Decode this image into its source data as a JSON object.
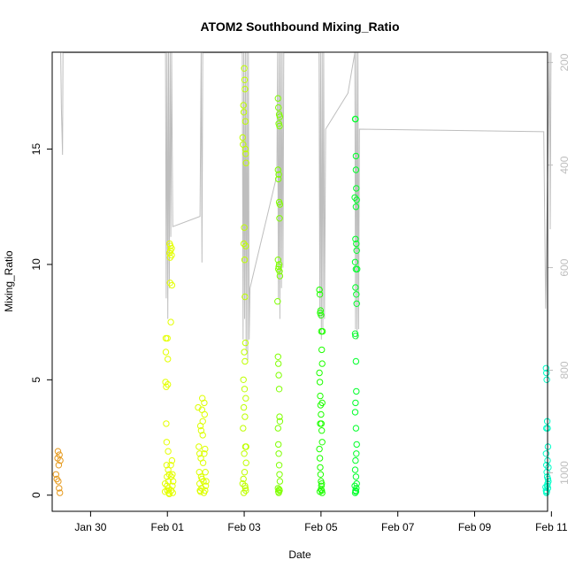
{
  "chart_data": {
    "type": "scatter",
    "title": "ATOM2 Southbound Mixing_Ratio",
    "xlabel": "Date",
    "ylabel": "Mixing_Ratio",
    "y2label": "",
    "xlim": [
      0,
      12.9
    ],
    "ylim": [
      -0.7,
      19.2
    ],
    "y2lim": [
      1075,
      180
    ],
    "y2_reversed": true,
    "grid": false,
    "legend": "none",
    "x_ticks": [
      {
        "x": 1.0,
        "label": "Jan 30"
      },
      {
        "x": 3.0,
        "label": "Feb 01"
      },
      {
        "x": 5.0,
        "label": "Feb 03"
      },
      {
        "x": 7.0,
        "label": "Feb 05"
      },
      {
        "x": 9.0,
        "label": "Feb 07"
      },
      {
        "x": 11.0,
        "label": "Feb 09"
      },
      {
        "x": 13.0,
        "label": "Feb 11"
      }
    ],
    "y_ticks": [
      0,
      5,
      10,
      15
    ],
    "y2_ticks": [
      200,
      400,
      600,
      800,
      1000
    ],
    "pressure_trace_color": "#bebebe",
    "pressure_profile": [
      {
        "x": 0.22,
        "p": 181
      },
      {
        "x": 0.24,
        "p": 290
      },
      {
        "x": 0.27,
        "p": 380
      },
      {
        "x": 0.28,
        "p": 181
      },
      {
        "x": 2.95,
        "p": 181
      },
      {
        "x": 2.97,
        "p": 660
      },
      {
        "x": 2.99,
        "p": 181
      },
      {
        "x": 3.01,
        "p": 700
      },
      {
        "x": 3.03,
        "p": 181
      },
      {
        "x": 3.05,
        "p": 640
      },
      {
        "x": 3.07,
        "p": 181
      },
      {
        "x": 3.09,
        "p": 540
      },
      {
        "x": 3.11,
        "p": 181
      },
      {
        "x": 3.14,
        "p": 520
      },
      {
        "x": 3.85,
        "p": 500
      },
      {
        "x": 3.88,
        "p": 181
      },
      {
        "x": 3.9,
        "p": 590
      },
      {
        "x": 3.92,
        "p": 181
      },
      {
        "x": 3.95,
        "p": 181
      },
      {
        "x": 4.95,
        "p": 181
      },
      {
        "x": 4.97,
        "p": 740
      },
      {
        "x": 4.99,
        "p": 181
      },
      {
        "x": 5.01,
        "p": 700
      },
      {
        "x": 5.03,
        "p": 181
      },
      {
        "x": 5.05,
        "p": 760
      },
      {
        "x": 5.07,
        "p": 181
      },
      {
        "x": 5.09,
        "p": 780
      },
      {
        "x": 5.11,
        "p": 181
      },
      {
        "x": 5.13,
        "p": 740
      },
      {
        "x": 5.15,
        "p": 640
      },
      {
        "x": 5.85,
        "p": 420
      },
      {
        "x": 5.87,
        "p": 181
      },
      {
        "x": 5.89,
        "p": 660
      },
      {
        "x": 5.91,
        "p": 181
      },
      {
        "x": 5.93,
        "p": 700
      },
      {
        "x": 5.95,
        "p": 181
      },
      {
        "x": 5.97,
        "p": 640
      },
      {
        "x": 5.99,
        "p": 181
      },
      {
        "x": 6.01,
        "p": 600
      },
      {
        "x": 6.03,
        "p": 181
      },
      {
        "x": 6.95,
        "p": 181
      },
      {
        "x": 6.97,
        "p": 700
      },
      {
        "x": 6.99,
        "p": 181
      },
      {
        "x": 7.01,
        "p": 740
      },
      {
        "x": 7.03,
        "p": 181
      },
      {
        "x": 7.05,
        "p": 720
      },
      {
        "x": 7.07,
        "p": 181
      },
      {
        "x": 7.09,
        "p": 700
      },
      {
        "x": 7.12,
        "p": 330
      },
      {
        "x": 7.7,
        "p": 260
      },
      {
        "x": 7.88,
        "p": 181
      },
      {
        "x": 7.9,
        "p": 720
      },
      {
        "x": 7.92,
        "p": 181
      },
      {
        "x": 7.94,
        "p": 740
      },
      {
        "x": 7.96,
        "p": 181
      },
      {
        "x": 7.98,
        "p": 720
      },
      {
        "x": 8.0,
        "p": 330
      },
      {
        "x": 12.8,
        "p": 335
      },
      {
        "x": 12.85,
        "p": 680
      },
      {
        "x": 12.95,
        "p": 181
      },
      {
        "x": 12.97,
        "p": 525
      },
      {
        "x": 12.99,
        "p": 181
      }
    ],
    "series": [
      {
        "color": "#e69a1e",
        "points": [
          [
            0.1,
            0.9
          ],
          [
            0.12,
            0.7
          ],
          [
            0.14,
            1.6
          ],
          [
            0.15,
            1.9
          ],
          [
            0.16,
            0.6
          ],
          [
            0.17,
            1.3
          ],
          [
            0.18,
            0.3
          ],
          [
            0.19,
            1.75
          ],
          [
            0.2,
            0.1
          ],
          [
            0.21,
            1.5
          ]
        ]
      },
      {
        "color": "#e4ff00",
        "points": [
          [
            2.95,
            4.9
          ],
          [
            2.96,
            6.8
          ],
          [
            2.96,
            6.2
          ],
          [
            2.97,
            4.7
          ],
          [
            2.97,
            3.1
          ],
          [
            2.98,
            2.3
          ],
          [
            2.98,
            1.3
          ],
          [
            2.99,
            0.8
          ],
          [
            2.99,
            0.4
          ],
          [
            3.0,
            0.2
          ],
          [
            3.0,
            6.8
          ],
          [
            3.01,
            5.9
          ],
          [
            3.01,
            4.8
          ],
          [
            3.02,
            1.9
          ],
          [
            3.02,
            1.1
          ],
          [
            3.03,
            0.6
          ],
          [
            3.03,
            0.3
          ],
          [
            3.04,
            0.1
          ],
          [
            3.05,
            0.05
          ],
          [
            3.05,
            0.9
          ],
          [
            3.06,
            10.9
          ],
          [
            3.06,
            10.5
          ],
          [
            3.07,
            10.3
          ],
          [
            3.07,
            9.2
          ],
          [
            3.08,
            10.8
          ],
          [
            3.08,
            10.6
          ],
          [
            3.09,
            7.5
          ],
          [
            3.09,
            1.3
          ],
          [
            3.1,
            0.8
          ],
          [
            3.1,
            0.2
          ],
          [
            3.11,
            10.7
          ],
          [
            3.11,
            10.4
          ],
          [
            3.12,
            9.1
          ],
          [
            3.12,
            1.5
          ],
          [
            3.13,
            0.9
          ],
          [
            3.13,
            0.4
          ],
          [
            3.14,
            0.1
          ],
          [
            2.94,
            0.5
          ],
          [
            2.94,
            0.15
          ],
          [
            3.15,
            0.6
          ]
        ]
      },
      {
        "color": "#ddff00",
        "points": [
          [
            3.8,
            3.8
          ],
          [
            3.82,
            2.1
          ],
          [
            3.83,
            1.0
          ],
          [
            3.84,
            0.5
          ],
          [
            3.85,
            0.2
          ],
          [
            3.86,
            3.0
          ],
          [
            3.87,
            1.6
          ],
          [
            3.88,
            0.8
          ],
          [
            3.89,
            0.3
          ],
          [
            3.9,
            3.7
          ],
          [
            3.91,
            4.2
          ],
          [
            3.92,
            2.6
          ],
          [
            3.93,
            1.4
          ],
          [
            3.94,
            0.6
          ],
          [
            3.95,
            0.1
          ],
          [
            3.96,
            4.0
          ],
          [
            3.97,
            3.5
          ],
          [
            3.98,
            2.0
          ],
          [
            3.99,
            1.0
          ],
          [
            4.0,
            0.4
          ],
          [
            3.92,
            3.2
          ],
          [
            3.88,
            2.8
          ],
          [
            3.84,
            1.8
          ],
          [
            3.96,
            1.8
          ],
          [
            3.9,
            0.7
          ],
          [
            3.86,
            0.15
          ],
          [
            3.98,
            0.2
          ],
          [
            4.01,
            0.6
          ]
        ]
      },
      {
        "color": "#bfff00",
        "points": [
          [
            4.96,
            15.5
          ],
          [
            4.97,
            15.2
          ],
          [
            4.98,
            16.9
          ],
          [
            4.99,
            16.6
          ],
          [
            5.0,
            18.5
          ],
          [
            5.01,
            18.0
          ],
          [
            5.02,
            17.6
          ],
          [
            5.03,
            16.2
          ],
          [
            5.04,
            14.8
          ],
          [
            5.05,
            14.4
          ],
          [
            5.03,
            15.0
          ],
          [
            5.0,
            11.6
          ],
          [
            4.99,
            10.9
          ],
          [
            5.01,
            10.2
          ],
          [
            5.04,
            10.8
          ],
          [
            5.02,
            8.6
          ],
          [
            5.0,
            6.2
          ],
          [
            5.02,
            5.8
          ],
          [
            5.03,
            6.6
          ],
          [
            4.98,
            5.0
          ],
          [
            5.01,
            4.6
          ],
          [
            5.04,
            4.2
          ],
          [
            4.99,
            3.8
          ],
          [
            5.02,
            3.4
          ],
          [
            4.97,
            2.9
          ],
          [
            5.03,
            2.1
          ],
          [
            5.0,
            1.8
          ],
          [
            5.05,
            1.4
          ],
          [
            5.01,
            1.0
          ],
          [
            4.98,
            0.7
          ],
          [
            5.02,
            0.4
          ],
          [
            5.04,
            0.2
          ],
          [
            4.99,
            0.1
          ],
          [
            5.03,
            0.3
          ],
          [
            5.05,
            2.1
          ],
          [
            4.96,
            0.5
          ]
        ]
      },
      {
        "color": "#7fff00",
        "points": [
          [
            5.88,
            17.2
          ],
          [
            5.89,
            16.8
          ],
          [
            5.9,
            16.1
          ],
          [
            5.91,
            16.5
          ],
          [
            5.92,
            16.0
          ],
          [
            5.93,
            16.4
          ],
          [
            5.88,
            14.1
          ],
          [
            5.89,
            13.7
          ],
          [
            5.9,
            13.9
          ],
          [
            5.91,
            12.7
          ],
          [
            5.92,
            12.0
          ],
          [
            5.93,
            12.6
          ],
          [
            5.88,
            10.2
          ],
          [
            5.89,
            9.8
          ],
          [
            5.9,
            9.9
          ],
          [
            5.91,
            10.0
          ],
          [
            5.92,
            9.7
          ],
          [
            5.93,
            9.5
          ],
          [
            5.87,
            8.4
          ],
          [
            5.88,
            6.0
          ],
          [
            5.89,
            5.7
          ],
          [
            5.9,
            5.2
          ],
          [
            5.91,
            4.6
          ],
          [
            5.92,
            3.4
          ],
          [
            5.93,
            3.2
          ],
          [
            5.88,
            2.9
          ],
          [
            5.89,
            2.2
          ],
          [
            5.9,
            1.8
          ],
          [
            5.91,
            1.3
          ],
          [
            5.92,
            0.9
          ],
          [
            5.93,
            0.6
          ],
          [
            5.88,
            0.3
          ],
          [
            5.89,
            0.15
          ],
          [
            5.9,
            0.1
          ],
          [
            5.91,
            0.25
          ],
          [
            5.92,
            0.2
          ]
        ]
      },
      {
        "color": "#1eff00",
        "points": [
          [
            6.96,
            8.9
          ],
          [
            6.97,
            8.7
          ],
          [
            6.98,
            7.9
          ],
          [
            6.99,
            8.0
          ],
          [
            7.0,
            7.8
          ],
          [
            7.01,
            7.1
          ],
          [
            7.02,
            6.3
          ],
          [
            7.03,
            5.7
          ],
          [
            6.96,
            5.3
          ],
          [
            6.97,
            4.9
          ],
          [
            6.98,
            4.3
          ],
          [
            6.99,
            3.9
          ],
          [
            7.0,
            3.5
          ],
          [
            7.01,
            3.1
          ],
          [
            7.02,
            2.8
          ],
          [
            7.03,
            2.3
          ],
          [
            6.96,
            2.0
          ],
          [
            6.97,
            1.6
          ],
          [
            6.98,
            1.2
          ],
          [
            6.99,
            0.9
          ],
          [
            7.0,
            0.6
          ],
          [
            7.01,
            0.4
          ],
          [
            7.02,
            0.2
          ],
          [
            7.03,
            0.1
          ],
          [
            6.97,
            0.15
          ],
          [
            7.0,
            0.25
          ],
          [
            7.02,
            0.5
          ],
          [
            6.98,
            3.1
          ],
          [
            7.03,
            4.0
          ],
          [
            7.04,
            7.1
          ]
        ]
      },
      {
        "color": "#00ff2a",
        "points": [
          [
            7.89,
            16.3
          ],
          [
            7.9,
            16.3
          ],
          [
            7.91,
            14.1
          ],
          [
            7.92,
            13.3
          ],
          [
            7.93,
            12.8
          ],
          [
            7.91,
            12.5
          ],
          [
            7.9,
            11.1
          ],
          [
            7.92,
            10.9
          ],
          [
            7.93,
            10.6
          ],
          [
            7.89,
            10.1
          ],
          [
            7.91,
            9.8
          ],
          [
            7.9,
            9.0
          ],
          [
            7.92,
            8.7
          ],
          [
            7.93,
            8.3
          ],
          [
            7.89,
            7.0
          ],
          [
            7.9,
            6.9
          ],
          [
            7.91,
            5.8
          ],
          [
            7.92,
            4.5
          ],
          [
            7.9,
            4.0
          ],
          [
            7.89,
            3.6
          ],
          [
            7.91,
            2.9
          ],
          [
            7.93,
            2.2
          ],
          [
            7.92,
            1.8
          ],
          [
            7.9,
            1.5
          ],
          [
            7.89,
            1.1
          ],
          [
            7.91,
            0.8
          ],
          [
            7.93,
            0.5
          ],
          [
            7.92,
            0.3
          ],
          [
            7.9,
            0.2
          ],
          [
            7.89,
            0.1
          ],
          [
            7.91,
            0.15
          ],
          [
            7.88,
            0.4
          ],
          [
            7.94,
            9.8
          ],
          [
            7.88,
            12.9
          ],
          [
            7.91,
            14.7
          ]
        ]
      },
      {
        "color": "#00ffc8",
        "points": [
          [
            12.86,
            5.5
          ],
          [
            12.87,
            5.3
          ],
          [
            12.88,
            5.0
          ],
          [
            12.89,
            3.2
          ],
          [
            12.9,
            2.9
          ],
          [
            12.91,
            2.1
          ],
          [
            12.86,
            1.8
          ],
          [
            12.87,
            1.3
          ],
          [
            12.88,
            1.0
          ],
          [
            12.89,
            0.8
          ],
          [
            12.9,
            0.5
          ],
          [
            12.91,
            0.3
          ],
          [
            12.86,
            0.2
          ],
          [
            12.87,
            0.1
          ],
          [
            12.88,
            0.15
          ],
          [
            12.89,
            0.4
          ],
          [
            12.9,
            1.5
          ],
          [
            12.91,
            0.7
          ],
          [
            12.87,
            2.9
          ],
          [
            12.92,
            0.6
          ],
          [
            12.85,
            0.35
          ],
          [
            12.92,
            1.2
          ]
        ]
      }
    ]
  }
}
